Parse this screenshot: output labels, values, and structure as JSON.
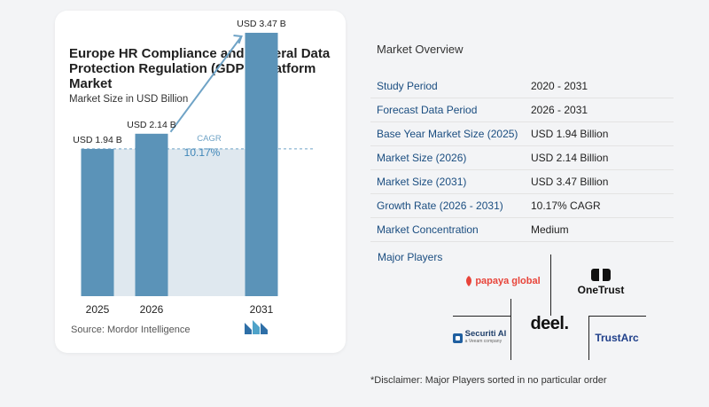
{
  "card": {
    "title": "Europe HR Compliance and General Data Protection Regulation (GDPR) Platform Market",
    "subtitle": "Market Size in USD Billion",
    "source": "Source: Mordor Intelligence"
  },
  "chart_data": {
    "type": "bar",
    "categories": [
      "2025",
      "2026",
      "2031"
    ],
    "values": [
      1.94,
      2.14,
      3.47
    ],
    "value_labels": [
      "USD 1.94 B",
      "USD 2.14 B",
      "USD 3.47 B"
    ],
    "annotation": {
      "label": "CAGR",
      "value": "10.17%"
    },
    "title": "Europe HR Compliance and General Data Protection Regulation (GDPR) Platform Market",
    "ylabel": "",
    "xlabel": "",
    "grid": false,
    "bar_color": "#5b93b8",
    "ylim": [
      0,
      3.7
    ]
  },
  "overview": {
    "title": "Market Overview",
    "rows": [
      {
        "key": "Study Period",
        "value": "2020 - 2031"
      },
      {
        "key": "Forecast Data Period",
        "value": "2026 - 2031"
      },
      {
        "key": "Base Year Market Size (2025)",
        "value": "USD 1.94 Billion"
      },
      {
        "key": "Market Size (2026)",
        "value": "USD 2.14 Billion"
      },
      {
        "key": "Market Size (2031)",
        "value": "USD 3.47 Billion"
      },
      {
        "key": "Growth Rate (2026 - 2031)",
        "value": "10.17% CAGR"
      },
      {
        "key": "Market Concentration",
        "value": "Medium"
      }
    ]
  },
  "players": {
    "title": "Major Players",
    "logos": [
      "papaya global",
      "OneTrust",
      "deel.",
      "Securiti AI",
      "TrustArc"
    ],
    "securiti_tagline": "a Veeam company"
  },
  "disclaimer": "*Disclaimer: Major Players sorted in no particular order"
}
